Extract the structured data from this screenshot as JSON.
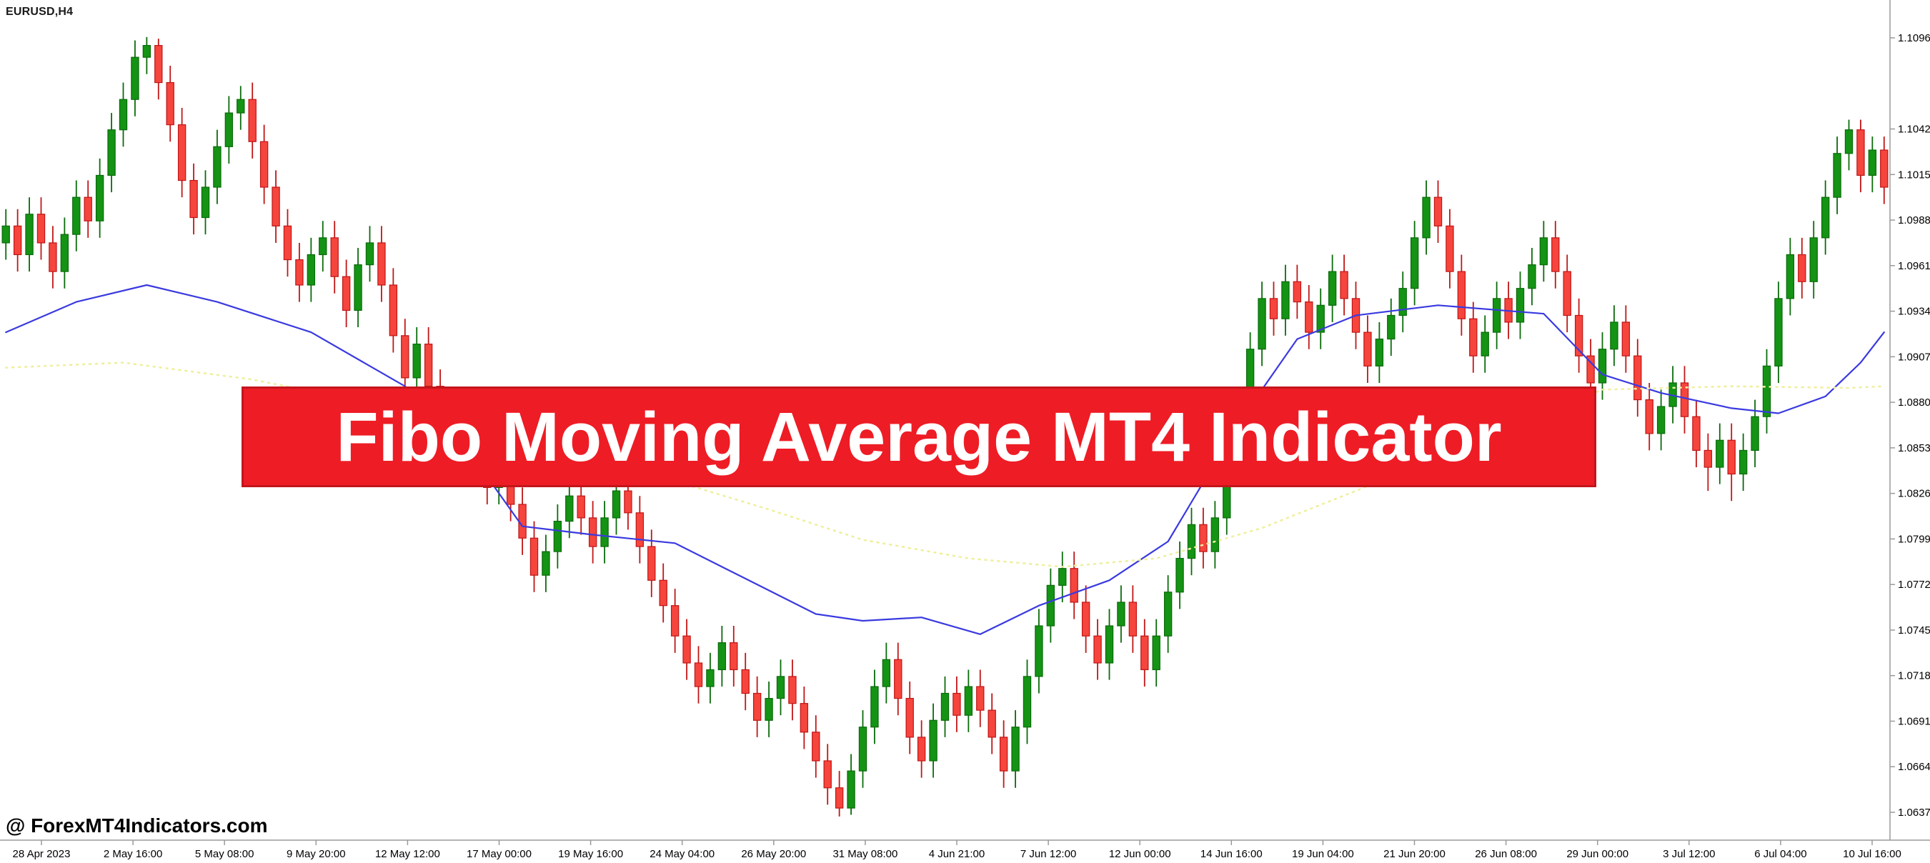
{
  "window": {
    "symbol_label": "EURUSD,H4"
  },
  "banner": {
    "text": "Fibo Moving Average MT4 Indicator",
    "bg": "#ee1c25",
    "border": "#c3161c",
    "text_color": "#ffffff"
  },
  "watermark": {
    "text": "@ ForexMT4Indicators.com"
  },
  "colors": {
    "background": "#ffffff",
    "bull": "#149314",
    "bull_border": "#0b6b0b",
    "bear": "#f5453d",
    "bear_border": "#c01616",
    "ma_fast": "#3a3ae0",
    "ma_slow": "#efef9e",
    "axis_line": "#9a9a9a",
    "axis_text": "#000000"
  },
  "chart_data": {
    "type": "candlestick",
    "symbol": "EURUSD",
    "timeframe": "H4",
    "price_axis": {
      "max": 1.10965,
      "min": 1.06375,
      "labels": [
        "1.10965",
        "1.10425",
        "1.10155",
        "1.09885",
        "1.09615",
        "1.09345",
        "1.09075",
        "1.08805",
        "1.08535",
        "1.08265",
        "1.07995",
        "1.07725",
        "1.07455",
        "1.07185",
        "1.06915",
        "1.06645",
        "1.06375"
      ]
    },
    "time_axis": {
      "labels": [
        "28 Apr 2023",
        "2 May 16:00",
        "5 May 08:00",
        "9 May 20:00",
        "12 May 12:00",
        "17 May 00:00",
        "19 May 16:00",
        "24 May 04:00",
        "26 May 20:00",
        "31 May 08:00",
        "4 Jun 21:00",
        "7 Jun 12:00",
        "12 Jun 00:00",
        "14 Jun 16:00",
        "19 Jun 04:00",
        "21 Jun 20:00",
        "26 Jun 08:00",
        "29 Jun 00:00",
        "3 Jul 12:00",
        "6 Jul 04:00",
        "10 Jul 16:00"
      ]
    },
    "candles": [
      [
        1.0975,
        1.0995,
        1.0965,
        1.0985
      ],
      [
        1.0985,
        1.0995,
        1.0958,
        1.0968
      ],
      [
        1.0968,
        1.1002,
        1.0958,
        1.0992
      ],
      [
        1.0992,
        1.1002,
        1.0965,
        1.0975
      ],
      [
        1.0975,
        1.0985,
        1.0948,
        1.0958
      ],
      [
        1.0958,
        1.099,
        1.0948,
        1.098
      ],
      [
        1.098,
        1.1012,
        1.097,
        1.1002
      ],
      [
        1.1002,
        1.1012,
        1.0978,
        1.0988
      ],
      [
        1.0988,
        1.1025,
        1.0978,
        1.1015
      ],
      [
        1.1015,
        1.1052,
        1.1005,
        1.1042
      ],
      [
        1.1042,
        1.107,
        1.1032,
        1.106
      ],
      [
        1.106,
        1.1095,
        1.105,
        1.1085
      ],
      [
        1.1085,
        1.1097,
        1.1075,
        1.1092
      ],
      [
        1.1092,
        1.1096,
        1.106,
        1.107
      ],
      [
        1.107,
        1.108,
        1.1035,
        1.1045
      ],
      [
        1.1045,
        1.1055,
        1.1002,
        1.1012
      ],
      [
        1.1012,
        1.1022,
        1.098,
        1.099
      ],
      [
        1.099,
        1.1018,
        1.098,
        1.1008
      ],
      [
        1.1008,
        1.1042,
        1.0998,
        1.1032
      ],
      [
        1.1032,
        1.1062,
        1.1022,
        1.1052
      ],
      [
        1.1052,
        1.1068,
        1.1042,
        1.106
      ],
      [
        1.106,
        1.107,
        1.1025,
        1.1035
      ],
      [
        1.1035,
        1.1045,
        1.0998,
        1.1008
      ],
      [
        1.1008,
        1.1018,
        1.0975,
        1.0985
      ],
      [
        1.0985,
        1.0995,
        1.0955,
        1.0965
      ],
      [
        1.0965,
        1.0975,
        1.094,
        1.095
      ],
      [
        1.095,
        1.0978,
        1.094,
        1.0968
      ],
      [
        1.0968,
        1.0988,
        1.0958,
        1.0978
      ],
      [
        1.0978,
        1.0988,
        1.0945,
        1.0955
      ],
      [
        1.0955,
        1.0965,
        1.0925,
        1.0935
      ],
      [
        1.0935,
        1.0972,
        1.0925,
        1.0962
      ],
      [
        1.0962,
        1.0985,
        1.0952,
        1.0975
      ],
      [
        1.0975,
        1.0985,
        1.094,
        1.095
      ],
      [
        1.095,
        1.096,
        1.091,
        1.092
      ],
      [
        1.092,
        1.093,
        1.0885,
        1.0895
      ],
      [
        1.0895,
        1.0925,
        1.0885,
        1.0915
      ],
      [
        1.0915,
        1.0925,
        1.088,
        1.089
      ],
      [
        1.089,
        1.09,
        1.0858,
        1.0868
      ],
      [
        1.0868,
        1.0878,
        1.0842,
        1.0852
      ],
      [
        1.0852,
        1.0872,
        1.0842,
        1.0862
      ],
      [
        1.0862,
        1.0872,
        1.0835,
        1.0845
      ],
      [
        1.0845,
        1.0855,
        1.082,
        1.083
      ],
      [
        1.083,
        1.0855,
        1.082,
        1.0845
      ],
      [
        1.0845,
        1.0855,
        1.081,
        1.082
      ],
      [
        1.082,
        1.083,
        1.079,
        1.08
      ],
      [
        1.08,
        1.081,
        1.0768,
        1.0778
      ],
      [
        1.0778,
        1.0802,
        1.0768,
        1.0792
      ],
      [
        1.0792,
        1.082,
        1.0782,
        1.081
      ],
      [
        1.081,
        1.0835,
        1.08,
        1.0825
      ],
      [
        1.0825,
        1.0835,
        1.0802,
        1.0812
      ],
      [
        1.0812,
        1.0822,
        1.0785,
        1.0795
      ],
      [
        1.0795,
        1.0822,
        1.0785,
        1.0812
      ],
      [
        1.0812,
        1.0838,
        1.0802,
        1.0828
      ],
      [
        1.0828,
        1.0838,
        1.0805,
        1.0815
      ],
      [
        1.0815,
        1.0825,
        1.0785,
        1.0795
      ],
      [
        1.0795,
        1.0805,
        1.0765,
        1.0775
      ],
      [
        1.0775,
        1.0785,
        1.075,
        1.076
      ],
      [
        1.076,
        1.077,
        1.0732,
        1.0742
      ],
      [
        1.0742,
        1.0752,
        1.0716,
        1.0726
      ],
      [
        1.0726,
        1.0736,
        1.0702,
        1.0712
      ],
      [
        1.0712,
        1.0732,
        1.0702,
        1.0722
      ],
      [
        1.0722,
        1.0748,
        1.0712,
        1.0738
      ],
      [
        1.0738,
        1.0748,
        1.0712,
        1.0722
      ],
      [
        1.0722,
        1.0732,
        1.0698,
        1.0708
      ],
      [
        1.0708,
        1.0718,
        1.0682,
        1.0692
      ],
      [
        1.0692,
        1.0715,
        1.0682,
        1.0705
      ],
      [
        1.0705,
        1.0728,
        1.0695,
        1.0718
      ],
      [
        1.0718,
        1.0728,
        1.0692,
        1.0702
      ],
      [
        1.0702,
        1.0712,
        1.0675,
        1.0685
      ],
      [
        1.0685,
        1.0695,
        1.0658,
        1.0668
      ],
      [
        1.0668,
        1.0678,
        1.0642,
        1.0652
      ],
      [
        1.0652,
        1.0662,
        1.0635,
        1.064
      ],
      [
        1.064,
        1.0672,
        1.0636,
        1.0662
      ],
      [
        1.0662,
        1.0698,
        1.0652,
        1.0688
      ],
      [
        1.0688,
        1.0722,
        1.0678,
        1.0712
      ],
      [
        1.0712,
        1.0738,
        1.0702,
        1.0728
      ],
      [
        1.0728,
        1.0738,
        1.0695,
        1.0705
      ],
      [
        1.0705,
        1.0715,
        1.0672,
        1.0682
      ],
      [
        1.0682,
        1.0692,
        1.0658,
        1.0668
      ],
      [
        1.0668,
        1.0702,
        1.0658,
        1.0692
      ],
      [
        1.0692,
        1.0718,
        1.0682,
        1.0708
      ],
      [
        1.0708,
        1.0718,
        1.0685,
        1.0695
      ],
      [
        1.0695,
        1.0722,
        1.0685,
        1.0712
      ],
      [
        1.0712,
        1.0722,
        1.0688,
        1.0698
      ],
      [
        1.0698,
        1.0708,
        1.0672,
        1.0682
      ],
      [
        1.0682,
        1.0692,
        1.0652,
        1.0662
      ],
      [
        1.0662,
        1.0698,
        1.0652,
        1.0688
      ],
      [
        1.0688,
        1.0728,
        1.0678,
        1.0718
      ],
      [
        1.0718,
        1.0758,
        1.0708,
        1.0748
      ],
      [
        1.0748,
        1.0782,
        1.0738,
        1.0772
      ],
      [
        1.0772,
        1.0792,
        1.0762,
        1.0782
      ],
      [
        1.0782,
        1.0792,
        1.0752,
        1.0762
      ],
      [
        1.0762,
        1.0772,
        1.0732,
        1.0742
      ],
      [
        1.0742,
        1.0752,
        1.0716,
        1.0726
      ],
      [
        1.0726,
        1.0758,
        1.0716,
        1.0748
      ],
      [
        1.0748,
        1.0772,
        1.0738,
        1.0762
      ],
      [
        1.0762,
        1.0772,
        1.0732,
        1.0742
      ],
      [
        1.0742,
        1.0752,
        1.0712,
        1.0722
      ],
      [
        1.0722,
        1.0752,
        1.0712,
        1.0742
      ],
      [
        1.0742,
        1.0778,
        1.0732,
        1.0768
      ],
      [
        1.0768,
        1.0798,
        1.0758,
        1.0788
      ],
      [
        1.0788,
        1.0818,
        1.0778,
        1.0808
      ],
      [
        1.0808,
        1.0818,
        1.0782,
        1.0792
      ],
      [
        1.0792,
        1.0822,
        1.0782,
        1.0812
      ],
      [
        1.0812,
        1.0852,
        1.0802,
        1.0842
      ],
      [
        1.0842,
        1.0888,
        1.0832,
        1.0878
      ],
      [
        1.0878,
        1.0922,
        1.0868,
        1.0912
      ],
      [
        1.0912,
        1.0952,
        1.0902,
        1.0942
      ],
      [
        1.0942,
        1.0952,
        1.092,
        1.093
      ],
      [
        1.093,
        1.0962,
        1.092,
        1.0952
      ],
      [
        1.0952,
        1.0962,
        1.093,
        1.094
      ],
      [
        1.094,
        1.095,
        1.0912,
        1.0922
      ],
      [
        1.0922,
        1.0948,
        1.0912,
        1.0938
      ],
      [
        1.0938,
        1.0968,
        1.0928,
        1.0958
      ],
      [
        1.0958,
        1.0968,
        1.0932,
        1.0942
      ],
      [
        1.0942,
        1.0952,
        1.0912,
        1.0922
      ],
      [
        1.0922,
        1.0932,
        1.0892,
        1.0902
      ],
      [
        1.0902,
        1.0928,
        1.0892,
        1.0918
      ],
      [
        1.0918,
        1.0942,
        1.0908,
        1.0932
      ],
      [
        1.0932,
        1.0958,
        1.0922,
        1.0948
      ],
      [
        1.0948,
        1.0988,
        1.0938,
        1.0978
      ],
      [
        1.0978,
        1.1012,
        1.0968,
        1.1002
      ],
      [
        1.1002,
        1.1012,
        1.0975,
        1.0985
      ],
      [
        1.0985,
        1.0995,
        1.0948,
        1.0958
      ],
      [
        1.0958,
        1.0968,
        1.092,
        1.093
      ],
      [
        1.093,
        1.094,
        1.0898,
        1.0908
      ],
      [
        1.0908,
        1.0932,
        1.0898,
        1.0922
      ],
      [
        1.0922,
        1.0952,
        1.0912,
        1.0942
      ],
      [
        1.0942,
        1.0952,
        1.0918,
        1.0928
      ],
      [
        1.0928,
        1.0958,
        1.0918,
        1.0948
      ],
      [
        1.0948,
        1.0972,
        1.0938,
        1.0962
      ],
      [
        1.0962,
        1.0988,
        1.0952,
        1.0978
      ],
      [
        1.0978,
        1.0988,
        1.0948,
        1.0958
      ],
      [
        1.0958,
        1.0968,
        1.0922,
        1.0932
      ],
      [
        1.0932,
        1.0942,
        1.0898,
        1.0908
      ],
      [
        1.0908,
        1.0918,
        1.0882,
        1.0892
      ],
      [
        1.0892,
        1.0922,
        1.0882,
        1.0912
      ],
      [
        1.0912,
        1.0938,
        1.0902,
        1.0928
      ],
      [
        1.0928,
        1.0938,
        1.0898,
        1.0908
      ],
      [
        1.0908,
        1.0918,
        1.0872,
        1.0882
      ],
      [
        1.0882,
        1.0892,
        1.0852,
        1.0862
      ],
      [
        1.0862,
        1.0888,
        1.0852,
        1.0878
      ],
      [
        1.0878,
        1.0902,
        1.0868,
        1.0892
      ],
      [
        1.0892,
        1.0902,
        1.0862,
        1.0872
      ],
      [
        1.0872,
        1.0882,
        1.0842,
        1.0852
      ],
      [
        1.0852,
        1.0862,
        1.0828,
        1.0842
      ],
      [
        1.0842,
        1.0868,
        1.0832,
        1.0858
      ],
      [
        1.0858,
        1.0868,
        1.0822,
        1.0838
      ],
      [
        1.0838,
        1.0862,
        1.0828,
        1.0852
      ],
      [
        1.0852,
        1.0882,
        1.0842,
        1.0872
      ],
      [
        1.0872,
        1.0912,
        1.0862,
        1.0902
      ],
      [
        1.0902,
        1.0952,
        1.0892,
        1.0942
      ],
      [
        1.0942,
        1.0978,
        1.0932,
        1.0968
      ],
      [
        1.0968,
        1.0978,
        1.0942,
        1.0952
      ],
      [
        1.0952,
        1.0988,
        1.0942,
        1.0978
      ],
      [
        1.0978,
        1.1012,
        1.0968,
        1.1002
      ],
      [
        1.1002,
        1.1038,
        1.0992,
        1.1028
      ],
      [
        1.1028,
        1.1048,
        1.1018,
        1.1042
      ],
      [
        1.1042,
        1.1048,
        1.1005,
        1.1015
      ],
      [
        1.1015,
        1.1038,
        1.1005,
        1.103
      ],
      [
        1.103,
        1.1038,
        1.0998,
        1.1008
      ]
    ],
    "overlays": [
      {
        "name": "moving-average-fast",
        "color": "#3a3ae0",
        "style": "solid",
        "points": [
          [
            0,
            1.0922
          ],
          [
            6,
            1.094
          ],
          [
            12,
            1.095
          ],
          [
            18,
            1.094
          ],
          [
            26,
            1.0922
          ],
          [
            34,
            1.089
          ],
          [
            39,
            1.0856
          ],
          [
            44,
            1.0807
          ],
          [
            50,
            1.0802
          ],
          [
            57,
            1.0797
          ],
          [
            63,
            1.0776
          ],
          [
            69,
            1.0755
          ],
          [
            73,
            1.0751
          ],
          [
            78,
            1.0753
          ],
          [
            83,
            1.0743
          ],
          [
            88,
            1.076
          ],
          [
            94,
            1.0775
          ],
          [
            99,
            1.0798
          ],
          [
            105,
            1.0868
          ],
          [
            110,
            1.0918
          ],
          [
            115,
            1.0932
          ],
          [
            122,
            1.0938
          ],
          [
            131,
            1.0933
          ],
          [
            136,
            1.0897
          ],
          [
            141,
            1.0886
          ],
          [
            147,
            1.0877
          ],
          [
            151,
            1.0874
          ],
          [
            155,
            1.0884
          ],
          [
            158,
            1.0904
          ],
          [
            160,
            1.0922
          ]
        ]
      },
      {
        "name": "fibo-moving-average",
        "color": "#efef9e",
        "style": "dotted",
        "points": [
          [
            0,
            1.0901
          ],
          [
            10,
            1.0904
          ],
          [
            21,
            1.0894
          ],
          [
            31,
            1.088
          ],
          [
            45,
            1.0855
          ],
          [
            55,
            1.0838
          ],
          [
            65,
            1.0817
          ],
          [
            73,
            1.0799
          ],
          [
            82,
            1.0788
          ],
          [
            90,
            1.0783
          ],
          [
            98,
            1.0788
          ],
          [
            107,
            1.0806
          ],
          [
            115,
            1.0828
          ],
          [
            122,
            1.0848
          ],
          [
            129,
            1.0868
          ],
          [
            136,
            1.0888
          ],
          [
            147,
            1.089
          ],
          [
            157,
            1.0889
          ],
          [
            160,
            1.089
          ]
        ]
      }
    ]
  }
}
